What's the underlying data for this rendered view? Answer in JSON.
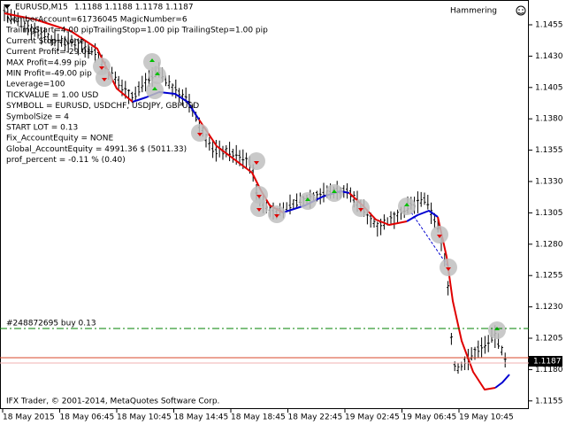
{
  "header": {
    "symbol": "EURUSD,M15",
    "ohlc": "1.1188 1.1188 1.1178 1.1187",
    "indicator": "Hammering"
  },
  "info_lines": [
    "NumberAccount=61736045  MagicNumber=6",
    "TrailingStart=4.00 pipTrailingStop=1.00 pip  TrailingStep=1.00 pip",
    "Current Stop=None",
    "Current Profit=-29.01",
    "MAX Profit=4.99 pip",
    "MIN Profit=-49.00 pip",
    "Leverage=100",
    "TICKVALUE = 1.00 USD",
    "SYMBOLL =  EURUSD, USDCHF, USDJPY, GBPUSD",
    "SymbolSize = 4",
    "START LOT = 0.13",
    "Fix_AccountEquity = NONE",
    "Global_AccountEquity = 4991.36 $ (5011.33)",
    "prof_percent = -0.11 % (0.40)"
  ],
  "order_line": "#248872695 buy 0.13",
  "current_price": "1.1187",
  "price_axis": [
    "1.1455",
    "1.1430",
    "1.1405",
    "1.1380",
    "1.1355",
    "1.1330",
    "1.1305",
    "1.1280",
    "1.1255",
    "1.1230",
    "1.1205",
    "1.1180",
    "1.1155"
  ],
  "time_axis": [
    "18 May 2015",
    "18 May 06:45",
    "18 May 10:45",
    "18 May 14:45",
    "18 May 18:45",
    "18 May 22:45",
    "19 May 02:45",
    "19 May 06:45",
    "19 May 10:45"
  ],
  "copyright": "IFX Trader, © 2001-2014, MetaQuotes Software Corp."
}
